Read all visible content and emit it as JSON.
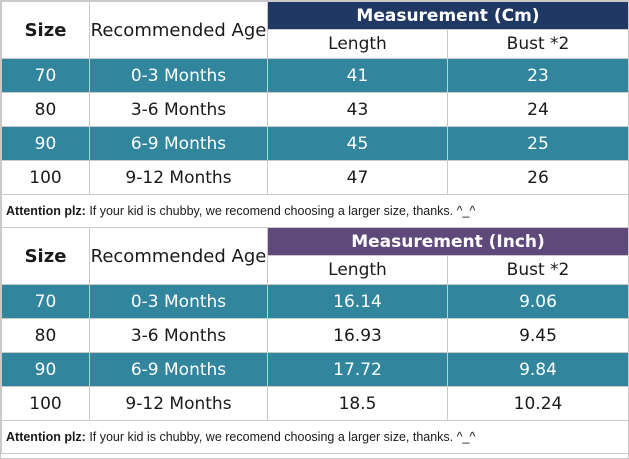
{
  "tables": [
    {
      "header": {
        "size": "Size",
        "age": "Recommended Age",
        "measurement": "Measurement (Cm)",
        "length": "Length",
        "bust": "Bust *2"
      },
      "rows": [
        {
          "size": "70",
          "age": "0-3 Months",
          "length": "41",
          "bust": "23"
        },
        {
          "size": "80",
          "age": "3-6 Months",
          "length": "43",
          "bust": "24"
        },
        {
          "size": "90",
          "age": "6-9 Months",
          "length": "45",
          "bust": "25"
        },
        {
          "size": "100",
          "age": "9-12 Months",
          "length": "47",
          "bust": "26"
        }
      ],
      "note": {
        "label": "Attention plz:",
        "text": " If your kid is chubby, we recomend choosing a larger size, thanks. ^_^"
      }
    },
    {
      "header": {
        "size": "Size",
        "age": "Recommended Age",
        "measurement": "Measurement (Inch)",
        "length": "Length",
        "bust": "Bust *2"
      },
      "rows": [
        {
          "size": "70",
          "age": "0-3 Months",
          "length": "16.14",
          "bust": "9.06"
        },
        {
          "size": "80",
          "age": "3-6 Months",
          "length": "16.93",
          "bust": "9.45"
        },
        {
          "size": "90",
          "age": "6-9 Months",
          "length": "17.72",
          "bust": "9.84"
        },
        {
          "size": "100",
          "age": "9-12 Months",
          "length": "18.5",
          "bust": "10.24"
        }
      ],
      "note": {
        "label": "Attention plz:",
        "text": " If your kid is chubby, we recomend choosing a larger size, thanks. ^_^"
      }
    }
  ],
  "colors": {
    "teal_row": "#31859c",
    "cm_header": "#1f3864",
    "inch_header": "#5f497a",
    "grid": "#c9c9c9"
  }
}
